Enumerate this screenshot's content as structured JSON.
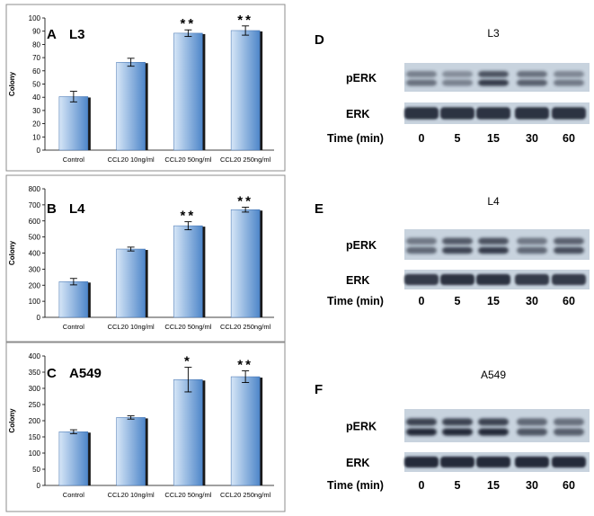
{
  "chart_data": [
    {
      "type": "bar",
      "panel": "A",
      "title": "L3",
      "ylabel": "Colony",
      "ylim": [
        0,
        100
      ],
      "yticks": [
        0,
        10,
        20,
        30,
        40,
        50,
        60,
        70,
        80,
        90,
        100
      ],
      "categories": [
        "Control",
        "CCL20 10ng/ml",
        "CCL20 50ng/ml",
        "CCL20 250ng/ml"
      ],
      "values": [
        40.5,
        66.5,
        88.5,
        90.5
      ],
      "errors": [
        4,
        3,
        2.5,
        3.5
      ],
      "significance": [
        "",
        "",
        "**",
        "**"
      ]
    },
    {
      "type": "bar",
      "panel": "B",
      "title": "L4",
      "ylabel": "Colony",
      "ylim": [
        0,
        800
      ],
      "yticks": [
        0,
        100,
        200,
        300,
        400,
        500,
        600,
        700,
        800
      ],
      "categories": [
        "Control",
        "CCL20 10ng/ml",
        "CCL20 50ng/ml",
        "CCL20 250ng/ml"
      ],
      "values": [
        222,
        425,
        570,
        670
      ],
      "errors": [
        20,
        12,
        25,
        15
      ],
      "significance": [
        "",
        "",
        "**",
        "**"
      ]
    },
    {
      "type": "bar",
      "panel": "C",
      "title": "A549",
      "ylabel": "Colony",
      "ylim": [
        0,
        400
      ],
      "yticks": [
        0,
        50,
        100,
        150,
        200,
        250,
        300,
        350,
        400
      ],
      "categories": [
        "Control",
        "CCL20 10ng/ml",
        "CCL20 50ng/ml",
        "CCL20 250ng/ml"
      ],
      "values": [
        166,
        210,
        327,
        336
      ],
      "errors": [
        6,
        5,
        38,
        18
      ],
      "significance": [
        "",
        "",
        "*",
        "**"
      ]
    }
  ],
  "blots": [
    {
      "panel": "D",
      "title": "L3",
      "rows": [
        "pERK",
        "ERK"
      ],
      "time_label": "Time (min)",
      "times": [
        "0",
        "5",
        "15",
        "30",
        "60"
      ],
      "perk_intensity": [
        0.55,
        0.45,
        0.85,
        0.65,
        0.5
      ],
      "erk_intensity": [
        0.9,
        0.9,
        0.9,
        0.9,
        0.9
      ]
    },
    {
      "panel": "E",
      "title": "L4",
      "rows": [
        "pERK",
        "ERK"
      ],
      "time_label": "Time (min)",
      "times": [
        "0",
        "5",
        "15",
        "30",
        "60"
      ],
      "perk_intensity": [
        0.6,
        0.8,
        0.85,
        0.6,
        0.75
      ],
      "erk_intensity": [
        0.85,
        0.9,
        0.9,
        0.85,
        0.85
      ]
    },
    {
      "panel": "F",
      "title": "A549",
      "rows": [
        "pERK",
        "ERK"
      ],
      "time_label": "Time (min)",
      "times": [
        "0",
        "5",
        "15",
        "30",
        "60"
      ],
      "perk_intensity": [
        0.95,
        0.95,
        0.95,
        0.7,
        0.65
      ],
      "erk_intensity": [
        0.95,
        0.95,
        0.95,
        0.95,
        0.95
      ]
    }
  ],
  "colors": {
    "bar_light": "#d6e6f7",
    "bar_dark": "#4e86c9",
    "bar_shadow": "#1a1a1a",
    "frame": "#8c8c8c",
    "blot_bg": "#c8d3de",
    "band": "#1d2430"
  }
}
